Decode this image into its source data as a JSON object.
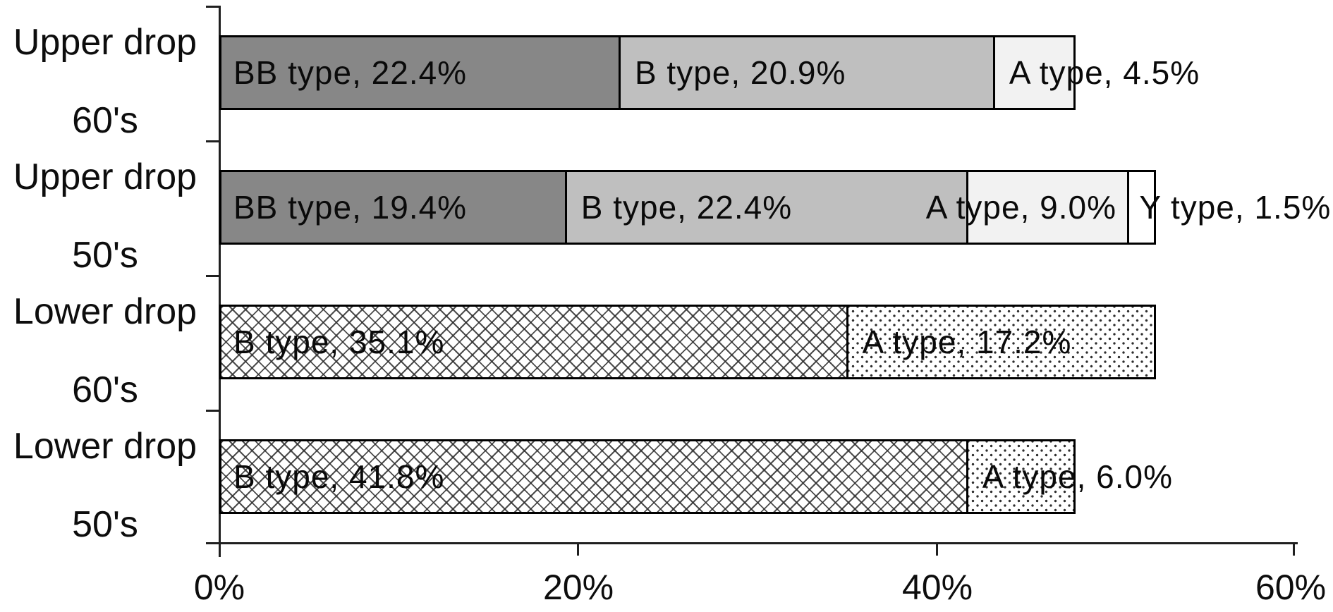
{
  "chart_data": {
    "type": "bar",
    "orientation": "horizontal",
    "stacked": true,
    "title": "",
    "xlabel": "",
    "ylabel": "",
    "legend": "none",
    "grid": false,
    "x_axis": {
      "min": 0,
      "max": 60,
      "tick_step": 20,
      "ticks": [
        {
          "label": "0%",
          "value": 0
        },
        {
          "label": "20%",
          "value": 20
        },
        {
          "label": "40%",
          "value": 40
        },
        {
          "label": "60%",
          "value": 60
        }
      ]
    },
    "rows": [
      {
        "category": [
          "Upper drop",
          "60's"
        ],
        "segments": [
          {
            "series": "BB type",
            "value": 22.4,
            "label": "BB type, 22.4%",
            "fill": "gray_dark"
          },
          {
            "series": "B type",
            "value": 20.9,
            "label": "B type, 20.9%",
            "fill": "gray_light"
          },
          {
            "series": "A type",
            "value": 4.5,
            "label": "A type, 4.5%",
            "fill": "gray_faint"
          }
        ]
      },
      {
        "category": [
          "Upper drop",
          "50's"
        ],
        "segments": [
          {
            "series": "BB type",
            "value": 19.4,
            "label": "BB type, 19.4%",
            "fill": "gray_dark"
          },
          {
            "series": "B type",
            "value": 22.4,
            "label": "B type, 22.4%",
            "fill": "gray_light"
          },
          {
            "series": "A type",
            "value": 9.0,
            "label": "A type, 9.0%",
            "fill": "gray_faint",
            "label_dx": -60
          },
          {
            "series": "Y type",
            "value": 1.5,
            "label": "Y type, 1.5%",
            "fill": "white",
            "label_dx": 14
          }
        ]
      },
      {
        "category": [
          "Lower drop",
          "60's"
        ],
        "segments": [
          {
            "series": "B type",
            "value": 35.1,
            "label": "B type, 35.1%",
            "fill": "crosshatch"
          },
          {
            "series": "A type",
            "value": 17.2,
            "label": "A type, 17.2%",
            "fill": "dots"
          }
        ]
      },
      {
        "category": [
          "Lower drop",
          "50's"
        ],
        "segments": [
          {
            "series": "B type",
            "value": 41.8,
            "label": "B type, 41.8%",
            "fill": "crosshatch"
          },
          {
            "series": "A type",
            "value": 6.0,
            "label": "A type, 6.0%",
            "fill": "dots"
          }
        ]
      }
    ],
    "colors": {
      "gray_dark": "#878787",
      "gray_light": "#bfbfbf",
      "gray_faint": "#f2f2f2",
      "white": "#ffffff",
      "border": "#000000",
      "pattern_ink": "#2e2e2e",
      "axis": "#1f1f1f",
      "text": "#0d0d0d"
    }
  }
}
